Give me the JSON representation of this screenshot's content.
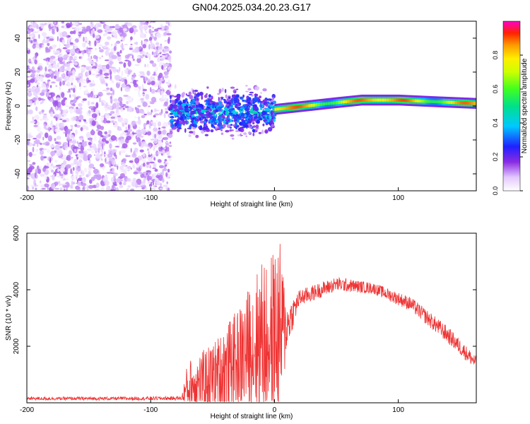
{
  "title": "GN04.2025.034.20.23.G17",
  "chart_data": [
    {
      "type": "heatmap",
      "xlabel": "Height of straight line (km)",
      "ylabel": "Frequency (Hz)",
      "xlim": [
        -200,
        163
      ],
      "ylim": [
        -50,
        50
      ],
      "x_ticks": [
        -200,
        -100,
        0,
        100
      ],
      "y_ticks": [
        -40,
        -20,
        0,
        20,
        40
      ],
      "colorbar": {
        "label": "Normalized spectral amplitude",
        "range": [
          0,
          1
        ],
        "ticks": [
          "0.0",
          "0.2",
          "0.4",
          "0.6",
          "0.8"
        ]
      },
      "regions": [
        {
          "x_from": -200,
          "x_to": -84,
          "description": "noise",
          "amplitude": [
            0.02,
            0.15
          ]
        },
        {
          "x_from": -84,
          "x_to": 0,
          "description": "scattered signal near 0 Hz",
          "freq_center": -4,
          "amplitude": [
            0.1,
            0.45
          ]
        },
        {
          "x_from": 0,
          "x_to": 163,
          "description": "coherent tone",
          "amplitude": [
            0.5,
            1.0
          ]
        }
      ],
      "ridge": [
        {
          "x": 0,
          "freq": -2
        },
        {
          "x": 25,
          "freq": 0
        },
        {
          "x": 50,
          "freq": 2
        },
        {
          "x": 70,
          "freq": 3.5
        },
        {
          "x": 100,
          "freq": 3.5
        },
        {
          "x": 130,
          "freq": 2.5
        },
        {
          "x": 163,
          "freq": 1.5
        }
      ]
    },
    {
      "type": "line",
      "xlabel": "Height of straight line (km)",
      "ylabel": "SNR (10 * v/v)",
      "xlim": [
        -200,
        163
      ],
      "ylim": [
        0,
        6000
      ],
      "x_ticks": [
        -200,
        -100,
        0,
        100
      ],
      "y_ticks": [
        2000,
        4000,
        6000
      ],
      "color": "#ee3333",
      "envelope": [
        {
          "x": -200,
          "mean": 150,
          "spread": 60
        },
        {
          "x": -130,
          "mean": 150,
          "spread": 60
        },
        {
          "x": -75,
          "mean": 160,
          "spread": 70
        },
        {
          "x": -70,
          "mean": 600,
          "spread": 900
        },
        {
          "x": -50,
          "mean": 900,
          "spread": 1200
        },
        {
          "x": -30,
          "mean": 1500,
          "spread": 1800
        },
        {
          "x": -10,
          "mean": 2300,
          "spread": 2800
        },
        {
          "x": 5,
          "mean": 2500,
          "spread": 3200
        },
        {
          "x": 10,
          "mean": 2700,
          "spread": 800
        },
        {
          "x": 20,
          "mean": 3700,
          "spread": 300
        },
        {
          "x": 50,
          "mean": 4200,
          "spread": 250
        },
        {
          "x": 80,
          "mean": 4050,
          "spread": 200
        },
        {
          "x": 110,
          "mean": 3500,
          "spread": 250
        },
        {
          "x": 140,
          "mean": 2400,
          "spread": 300
        },
        {
          "x": 163,
          "mean": 1400,
          "spread": 250
        }
      ]
    }
  ]
}
